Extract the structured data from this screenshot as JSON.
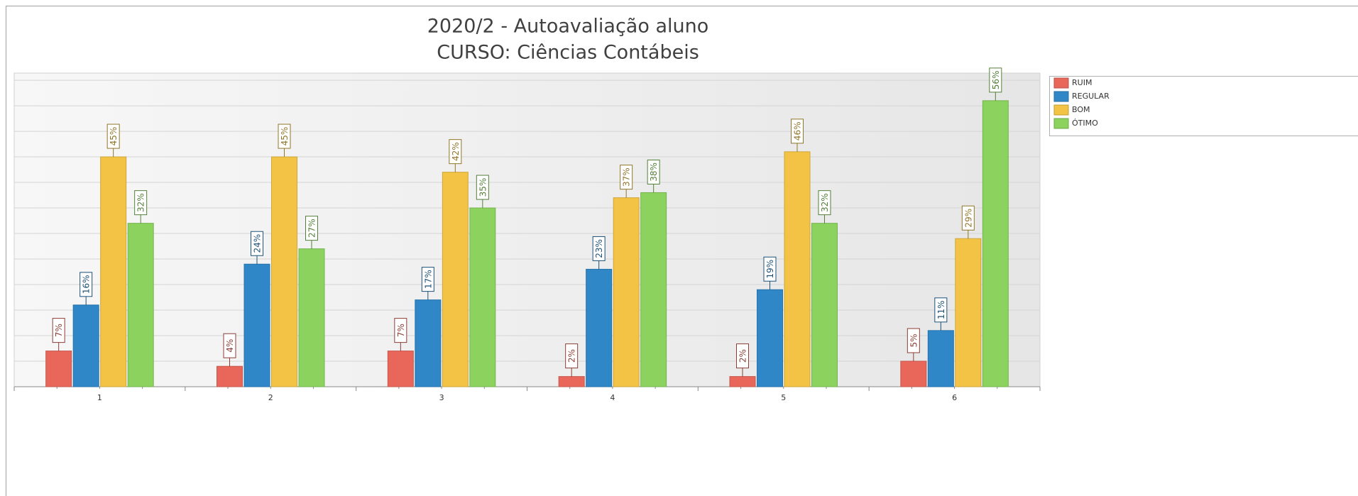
{
  "chart_data": {
    "type": "bar",
    "title": "2020/2 -  Autoavaliação aluno",
    "subtitle": "CURSO: Ciências Contábeis",
    "categories": [
      "1",
      "2",
      "3",
      "4",
      "5",
      "6"
    ],
    "series": [
      {
        "name": "RUIM",
        "color": "#e8675a",
        "values": [
          7,
          4,
          7,
          2,
          2,
          5
        ],
        "value_labels": [
          "7%",
          "4%",
          "7%",
          "2%",
          "2%",
          "5%"
        ]
      },
      {
        "name": "REGULAR",
        "color": "#2f87c8",
        "values": [
          16,
          24,
          17,
          23,
          19,
          11
        ],
        "value_labels": [
          "16%",
          "24%",
          "17%",
          "23%",
          "19%",
          "11%"
        ]
      },
      {
        "name": "BOM",
        "color": "#f2c344",
        "values": [
          45,
          45,
          42,
          37,
          46,
          29
        ],
        "value_labels": [
          "45%",
          "45%",
          "42%",
          "37%",
          "46%",
          "29%"
        ]
      },
      {
        "name": "ÓTIMO",
        "color": "#8bd35e",
        "values": [
          32,
          27,
          35,
          38,
          32,
          56
        ],
        "value_labels": [
          "32%",
          "27%",
          "35%",
          "38%",
          "32%",
          "56%"
        ]
      }
    ],
    "ylim": [
      0,
      61.4
    ],
    "yticks": [
      0,
      5,
      10,
      15,
      20,
      25,
      30,
      35,
      40,
      45,
      50,
      55,
      60
    ],
    "grid": true,
    "legend": "right"
  }
}
